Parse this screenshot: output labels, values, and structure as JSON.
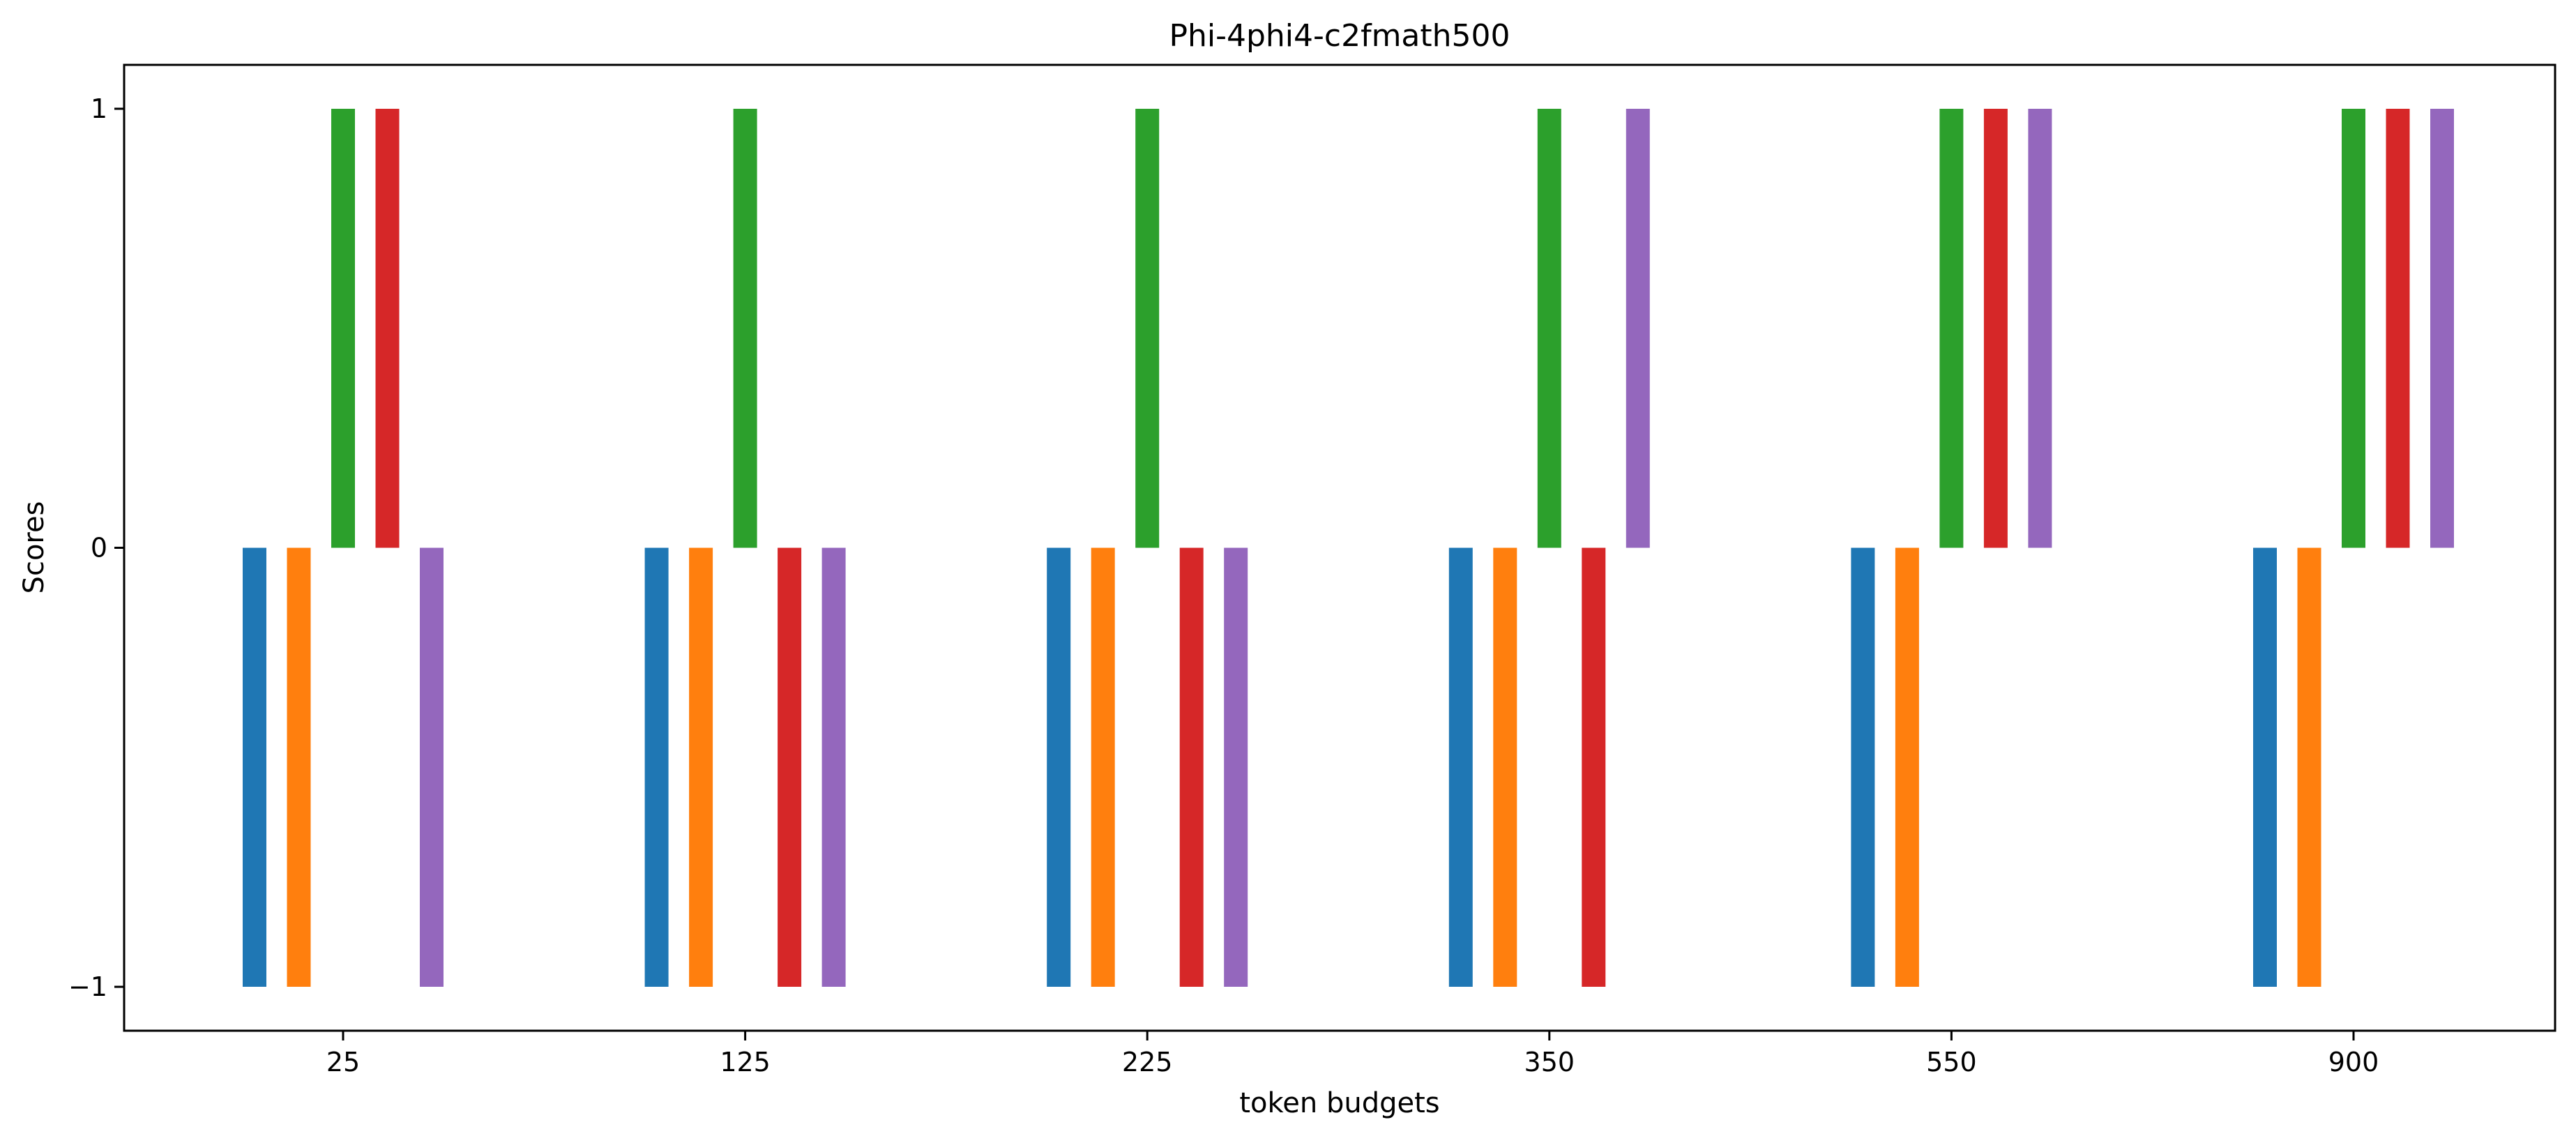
{
  "chart_data": {
    "type": "bar",
    "title": "Phi-4phi4-c2fmath500",
    "xlabel": "token budgets",
    "ylabel": "Scores",
    "categories": [
      "25",
      "125",
      "225",
      "350",
      "550",
      "900"
    ],
    "y_ticks": [
      -1,
      0,
      1
    ],
    "y_tick_labels": [
      "−1",
      "0",
      "1"
    ],
    "ylim": [
      -1.1,
      1.1
    ],
    "grid": false,
    "legend": "none",
    "series": [
      {
        "color": "#1f77b4",
        "values": [
          -1,
          -1,
          -1,
          -1,
          -1,
          -1
        ]
      },
      {
        "color": "#ff7f0e",
        "values": [
          -1,
          -1,
          -1,
          -1,
          -1,
          -1
        ]
      },
      {
        "color": "#2ca02c",
        "values": [
          1,
          1,
          1,
          1,
          1,
          1
        ]
      },
      {
        "color": "#d62728",
        "values": [
          1,
          -1,
          -1,
          -1,
          1,
          1
        ]
      },
      {
        "color": "#9467bd",
        "values": [
          -1,
          -1,
          -1,
          1,
          1,
          1
        ]
      }
    ]
  }
}
